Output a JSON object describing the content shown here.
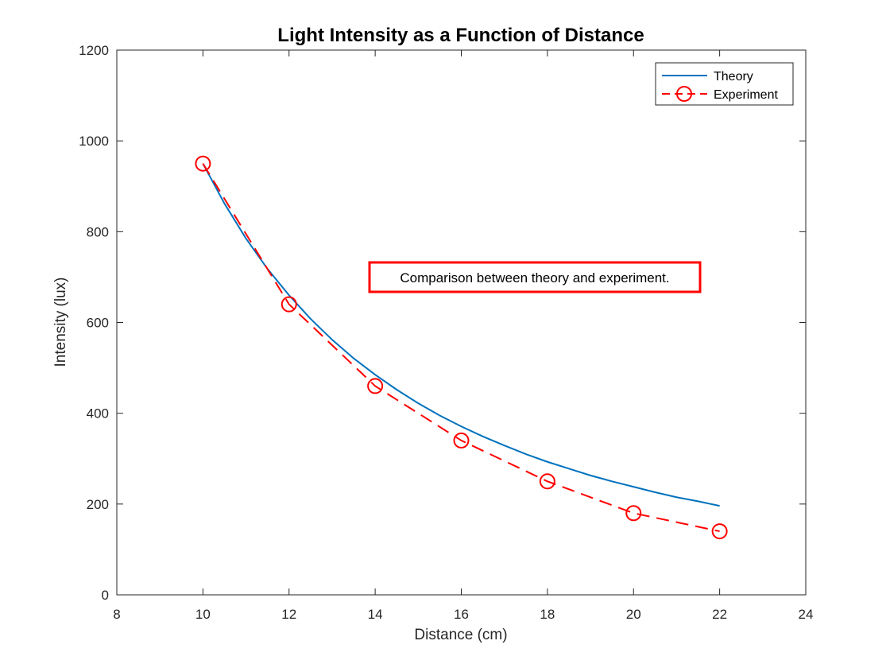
{
  "chart_data": {
    "type": "line",
    "title": "Light Intensity as a Function of Distance",
    "xlabel": "Distance (cm)",
    "ylabel": "Intensity (lux)",
    "xlim": [
      8,
      24
    ],
    "ylim": [
      0,
      1200
    ],
    "xticks": [
      8,
      10,
      12,
      14,
      16,
      18,
      20,
      22,
      24
    ],
    "yticks": [
      0,
      200,
      400,
      600,
      800,
      1000,
      1200
    ],
    "grid": false,
    "legend_position": "top-right",
    "series": [
      {
        "name": "Theory",
        "style": "solid line",
        "color": "#0072BD",
        "x": [
          10,
          10.5,
          11,
          11.5,
          12,
          12.5,
          13,
          13.5,
          14,
          14.5,
          15,
          15.5,
          16,
          16.5,
          17,
          17.5,
          18,
          18.5,
          19,
          19.5,
          20,
          20.5,
          21,
          21.5,
          22
        ],
        "y": [
          950,
          862,
          785,
          718,
          660,
          608,
          562,
          521,
          485,
          452,
          422,
          395,
          371,
          349,
          329,
          310,
          293,
          278,
          263,
          250,
          238,
          226,
          215,
          206,
          196
        ]
      },
      {
        "name": "Experiment",
        "style": "dashed line with circle markers",
        "color": "#FF0000",
        "x": [
          10,
          12,
          14,
          16,
          18,
          20,
          22
        ],
        "y": [
          950,
          640,
          460,
          340,
          250,
          180,
          140
        ]
      }
    ],
    "annotation": {
      "text": "Comparison between theory and experiment.",
      "border_color": "#FF0000"
    }
  }
}
